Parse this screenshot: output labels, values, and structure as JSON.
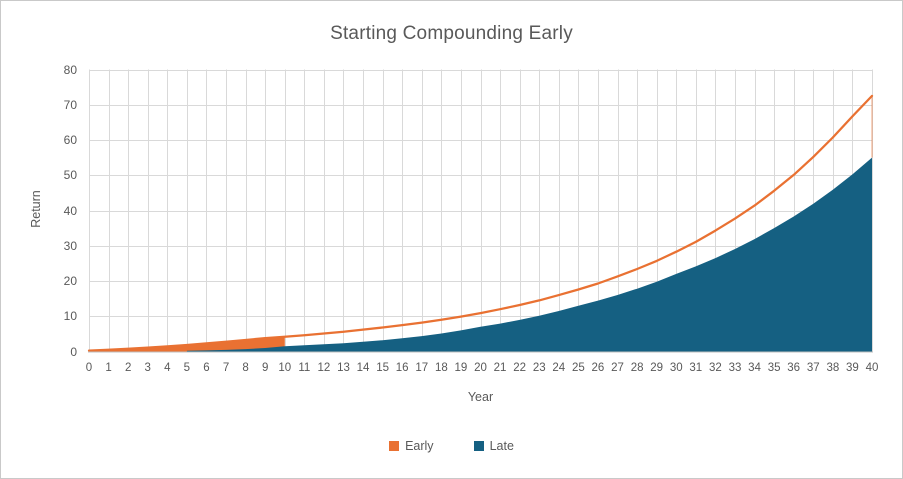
{
  "window": {
    "background": "#FFFFFF",
    "border_color": "#C9C9C9"
  },
  "chart": {
    "title": "Starting Compounding Early",
    "x_axis_label": "Year",
    "y_axis_label": "Return",
    "colors": {
      "early_series": "#E97132",
      "late_series": "#156082",
      "gridline": "#D9D9D9",
      "axis_line": "#BFBFBF",
      "text": "#595959"
    }
  },
  "chart_data": {
    "type": "area",
    "title": "Starting Compounding Early",
    "xlabel": "Year",
    "ylabel": "Return",
    "xlim": [
      0,
      40
    ],
    "ylim": [
      0,
      80
    ],
    "grid": true,
    "legend_position": "bottom",
    "x_ticks": [
      0,
      1,
      2,
      3,
      4,
      5,
      6,
      7,
      8,
      9,
      10,
      11,
      12,
      13,
      14,
      15,
      16,
      17,
      18,
      19,
      20,
      21,
      22,
      23,
      24,
      25,
      26,
      27,
      28,
      29,
      30,
      31,
      32,
      33,
      34,
      35,
      36,
      37,
      38,
      39,
      40
    ],
    "y_ticks": [
      0,
      10,
      20,
      30,
      40,
      50,
      60,
      70,
      80
    ],
    "series": [
      {
        "name": "Early",
        "color": "#E97132",
        "style": "line-with-fill-through-year-10",
        "fill_end_x": 10,
        "x": [
          0,
          1,
          2,
          3,
          4,
          5,
          6,
          7,
          8,
          9,
          10,
          11,
          12,
          13,
          14,
          15,
          16,
          17,
          18,
          19,
          20,
          21,
          22,
          23,
          24,
          25,
          26,
          27,
          28,
          29,
          30,
          31,
          32,
          33,
          34,
          35,
          36,
          37,
          38,
          39,
          40
        ],
        "values": [
          0.25,
          0.5,
          0.8,
          1.1,
          1.45,
          1.85,
          2.3,
          2.75,
          3.25,
          3.8,
          4.2,
          4.6,
          5.1,
          5.6,
          6.2,
          6.8,
          7.5,
          8.2,
          9.0,
          9.9,
          10.9,
          12.0,
          13.2,
          14.5,
          16.0,
          17.6,
          19.3,
          21.3,
          23.4,
          25.7,
          28.3,
          31.1,
          34.3,
          37.7,
          41.4,
          45.6,
          50.1,
          55.2,
          60.7,
          66.7,
          72.5
        ]
      },
      {
        "name": "Late",
        "color": "#156082",
        "style": "filled-area",
        "x": [
          5,
          6,
          7,
          8,
          9,
          10,
          11,
          12,
          13,
          14,
          15,
          16,
          17,
          18,
          19,
          20,
          21,
          22,
          23,
          24,
          25,
          26,
          27,
          28,
          29,
          30,
          31,
          32,
          33,
          34,
          35,
          36,
          37,
          38,
          39,
          40
        ],
        "values": [
          0.2,
          0.3,
          0.45,
          0.67,
          1.0,
          1.5,
          1.75,
          2.03,
          2.36,
          2.75,
          3.2,
          3.74,
          4.38,
          5.12,
          5.99,
          7.0,
          7.92,
          8.97,
          10.15,
          11.49,
          13.0,
          14.44,
          16.04,
          17.82,
          19.8,
          22.0,
          24.14,
          26.49,
          29.07,
          31.9,
          35.0,
          38.31,
          41.94,
          45.9,
          50.24,
          55.0
        ]
      }
    ]
  }
}
